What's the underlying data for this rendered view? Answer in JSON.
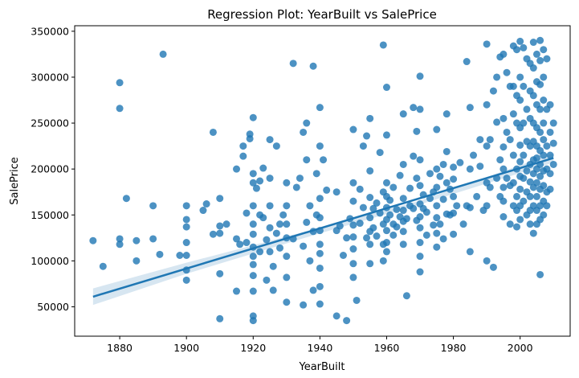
{
  "chart_data": {
    "type": "scatter",
    "title": "Regression Plot: YearBuilt vs SalePrice",
    "xlabel": "YearBuilt",
    "ylabel": "SalePrice",
    "xlim": [
      1866.5,
      2015
    ],
    "ylim": [
      18000,
      356000
    ],
    "x_ticks": [
      1880,
      1900,
      1920,
      1940,
      1960,
      1980,
      2000
    ],
    "y_ticks": [
      50000,
      100000,
      150000,
      200000,
      250000,
      300000,
      350000
    ],
    "grid": false,
    "colors": {
      "points": "#1f77b4",
      "line": "#1f77b4",
      "band": "#1f77b4"
    },
    "regression": {
      "x": [
        1872,
        2010
      ],
      "y": [
        61000,
        212000
      ]
    },
    "confidence_band": {
      "x": [
        1872,
        1900,
        1940,
        1970,
        2010
      ],
      "lower": [
        52000,
        86000,
        130000,
        161500,
        207000
      ],
      "upper": [
        70000,
        98000,
        136000,
        165500,
        217000
      ]
    },
    "points": [
      [
        1872,
        122000
      ],
      [
        1875,
        94000
      ],
      [
        1880,
        294000
      ],
      [
        1880,
        266000
      ],
      [
        1880,
        124000
      ],
      [
        1880,
        118000
      ],
      [
        1882,
        168000
      ],
      [
        1885,
        100000
      ],
      [
        1885,
        122000
      ],
      [
        1890,
        124000
      ],
      [
        1890,
        160000
      ],
      [
        1892,
        107000
      ],
      [
        1893,
        325000
      ],
      [
        1898,
        106000
      ],
      [
        1900,
        160000
      ],
      [
        1900,
        145000
      ],
      [
        1900,
        137000
      ],
      [
        1900,
        120000
      ],
      [
        1900,
        106000
      ],
      [
        1900,
        90000
      ],
      [
        1900,
        79000
      ],
      [
        1905,
        155000
      ],
      [
        1906,
        162000
      ],
      [
        1908,
        129000
      ],
      [
        1908,
        240000
      ],
      [
        1910,
        168000
      ],
      [
        1910,
        138000
      ],
      [
        1910,
        130000
      ],
      [
        1910,
        86000
      ],
      [
        1910,
        37000
      ],
      [
        1912,
        140000
      ],
      [
        1915,
        124000
      ],
      [
        1915,
        200000
      ],
      [
        1915,
        67000
      ],
      [
        1916,
        118000
      ],
      [
        1917,
        225000
      ],
      [
        1917,
        214000
      ],
      [
        1918,
        152000
      ],
      [
        1918,
        120000
      ],
      [
        1919,
        233000
      ],
      [
        1919,
        238000
      ],
      [
        1920,
        256000
      ],
      [
        1920,
        185000
      ],
      [
        1920,
        195000
      ],
      [
        1920,
        160000
      ],
      [
        1920,
        140000
      ],
      [
        1920,
        129000
      ],
      [
        1920,
        115000
      ],
      [
        1920,
        105000
      ],
      [
        1920,
        96000
      ],
      [
        1920,
        84000
      ],
      [
        1920,
        67000
      ],
      [
        1920,
        40000
      ],
      [
        1920,
        35000
      ],
      [
        1921,
        179000
      ],
      [
        1922,
        187000
      ],
      [
        1922,
        150000
      ],
      [
        1922,
        110000
      ],
      [
        1923,
        201000
      ],
      [
        1923,
        147000
      ],
      [
        1924,
        123000
      ],
      [
        1924,
        79000
      ],
      [
        1925,
        232000
      ],
      [
        1925,
        190000
      ],
      [
        1925,
        160000
      ],
      [
        1925,
        136000
      ],
      [
        1925,
        110000
      ],
      [
        1926,
        94000
      ],
      [
        1926,
        68000
      ],
      [
        1927,
        225000
      ],
      [
        1927,
        130000
      ],
      [
        1928,
        114000
      ],
      [
        1928,
        140000
      ],
      [
        1929,
        150000
      ],
      [
        1930,
        185000
      ],
      [
        1930,
        160000
      ],
      [
        1930,
        140000
      ],
      [
        1930,
        125000
      ],
      [
        1930,
        105000
      ],
      [
        1930,
        82000
      ],
      [
        1930,
        55000
      ],
      [
        1932,
        315000
      ],
      [
        1932,
        124000
      ],
      [
        1933,
        180000
      ],
      [
        1934,
        190000
      ],
      [
        1935,
        240000
      ],
      [
        1935,
        116000
      ],
      [
        1935,
        52000
      ],
      [
        1936,
        250000
      ],
      [
        1936,
        210000
      ],
      [
        1936,
        142000
      ],
      [
        1937,
        160000
      ],
      [
        1937,
        100000
      ],
      [
        1938,
        312000
      ],
      [
        1938,
        132000
      ],
      [
        1938,
        68000
      ],
      [
        1939,
        195000
      ],
      [
        1939,
        150000
      ],
      [
        1940,
        267000
      ],
      [
        1940,
        225000
      ],
      [
        1940,
        168000
      ],
      [
        1940,
        147000
      ],
      [
        1940,
        133000
      ],
      [
        1940,
        118000
      ],
      [
        1940,
        108000
      ],
      [
        1940,
        92000
      ],
      [
        1940,
        72000
      ],
      [
        1940,
        53000
      ],
      [
        1941,
        210000
      ],
      [
        1942,
        177000
      ],
      [
        1945,
        175000
      ],
      [
        1945,
        133000
      ],
      [
        1945,
        40000
      ],
      [
        1946,
        138000
      ],
      [
        1947,
        106000
      ],
      [
        1948,
        125000
      ],
      [
        1948,
        35000
      ],
      [
        1949,
        146000
      ],
      [
        1950,
        243000
      ],
      [
        1950,
        185000
      ],
      [
        1950,
        165000
      ],
      [
        1950,
        139000
      ],
      [
        1950,
        126000
      ],
      [
        1950,
        113000
      ],
      [
        1950,
        97000
      ],
      [
        1950,
        82000
      ],
      [
        1951,
        57000
      ],
      [
        1952,
        178000
      ],
      [
        1952,
        141000
      ],
      [
        1953,
        225000
      ],
      [
        1953,
        158000
      ],
      [
        1954,
        236000
      ],
      [
        1954,
        125000
      ],
      [
        1955,
        255000
      ],
      [
        1955,
        198000
      ],
      [
        1955,
        169000
      ],
      [
        1955,
        147000
      ],
      [
        1955,
        132000
      ],
      [
        1955,
        118000
      ],
      [
        1955,
        97000
      ],
      [
        1956,
        157000
      ],
      [
        1956,
        136000
      ],
      [
        1957,
        127000
      ],
      [
        1957,
        163000
      ],
      [
        1958,
        218000
      ],
      [
        1958,
        152000
      ],
      [
        1959,
        335000
      ],
      [
        1959,
        175000
      ],
      [
        1959,
        140000
      ],
      [
        1959,
        118000
      ],
      [
        1959,
        100000
      ],
      [
        1960,
        289000
      ],
      [
        1960,
        237000
      ],
      [
        1960,
        185000
      ],
      [
        1960,
        170000
      ],
      [
        1960,
        158000
      ],
      [
        1960,
        145000
      ],
      [
        1960,
        133000
      ],
      [
        1960,
        120000
      ],
      [
        1960,
        110000
      ],
      [
        1961,
        166000
      ],
      [
        1961,
        150000
      ],
      [
        1962,
        180000
      ],
      [
        1962,
        140000
      ],
      [
        1962,
        128000
      ],
      [
        1963,
        156000
      ],
      [
        1963,
        137000
      ],
      [
        1964,
        193000
      ],
      [
        1964,
        148000
      ],
      [
        1965,
        260000
      ],
      [
        1965,
        205000
      ],
      [
        1965,
        168000
      ],
      [
        1965,
        155000
      ],
      [
        1965,
        143000
      ],
      [
        1965,
        132000
      ],
      [
        1965,
        118000
      ],
      [
        1966,
        146000
      ],
      [
        1966,
        62000
      ],
      [
        1967,
        179000
      ],
      [
        1967,
        160000
      ],
      [
        1968,
        267000
      ],
      [
        1968,
        214000
      ],
      [
        1968,
        157000
      ],
      [
        1969,
        241000
      ],
      [
        1969,
        190000
      ],
      [
        1969,
        144000
      ],
      [
        1970,
        301000
      ],
      [
        1970,
        265000
      ],
      [
        1970,
        210000
      ],
      [
        1970,
        182000
      ],
      [
        1970,
        162000
      ],
      [
        1970,
        148000
      ],
      [
        1970,
        136000
      ],
      [
        1970,
        120000
      ],
      [
        1970,
        105000
      ],
      [
        1970,
        88000
      ],
      [
        1971,
        172000
      ],
      [
        1971,
        157000
      ],
      [
        1972,
        153000
      ],
      [
        1972,
        128000
      ],
      [
        1973,
        195000
      ],
      [
        1973,
        168000
      ],
      [
        1974,
        175000
      ],
      [
        1974,
        139000
      ],
      [
        1975,
        243000
      ],
      [
        1975,
        200000
      ],
      [
        1975,
        180000
      ],
      [
        1975,
        160000
      ],
      [
        1975,
        147000
      ],
      [
        1975,
        130000
      ],
      [
        1975,
        115000
      ],
      [
        1976,
        192000
      ],
      [
        1976,
        140000
      ],
      [
        1977,
        205000
      ],
      [
        1977,
        167000
      ],
      [
        1977,
        124000
      ],
      [
        1978,
        260000
      ],
      [
        1978,
        219000
      ],
      [
        1978,
        185000
      ],
      [
        1978,
        151000
      ],
      [
        1979,
        178000
      ],
      [
        1979,
        150000
      ],
      [
        1980,
        202000
      ],
      [
        1980,
        189000
      ],
      [
        1980,
        170000
      ],
      [
        1980,
        152000
      ],
      [
        1980,
        129000
      ],
      [
        1981,
        160000
      ],
      [
        1982,
        207000
      ],
      [
        1983,
        140000
      ],
      [
        1984,
        317000
      ],
      [
        1984,
        160000
      ],
      [
        1985,
        267000
      ],
      [
        1985,
        200000
      ],
      [
        1985,
        158000
      ],
      [
        1985,
        110000
      ],
      [
        1986,
        215000
      ],
      [
        1987,
        170000
      ],
      [
        1988,
        232000
      ],
      [
        1988,
        203000
      ],
      [
        1989,
        155000
      ],
      [
        1990,
        336000
      ],
      [
        1990,
        270000
      ],
      [
        1990,
        225000
      ],
      [
        1990,
        185000
      ],
      [
        1990,
        160000
      ],
      [
        1990,
        100000
      ],
      [
        1991,
        232000
      ],
      [
        1991,
        180000
      ],
      [
        1992,
        285000
      ],
      [
        1992,
        93000
      ],
      [
        1993,
        251000
      ],
      [
        1993,
        190000
      ],
      [
        1993,
        300000
      ],
      [
        1994,
        322000
      ],
      [
        1994,
        210000
      ],
      [
        1994,
        170000
      ],
      [
        1995,
        325000
      ],
      [
        1995,
        255000
      ],
      [
        1995,
        224000
      ],
      [
        1995,
        200000
      ],
      [
        1995,
        180000
      ],
      [
        1995,
        165000
      ],
      [
        1995,
        148000
      ],
      [
        1996,
        305000
      ],
      [
        1996,
        240000
      ],
      [
        1996,
        190000
      ],
      [
        1997,
        290000
      ],
      [
        1997,
        232000
      ],
      [
        1997,
        182000
      ],
      [
        1997,
        140000
      ],
      [
        1998,
        334000
      ],
      [
        1998,
        290000
      ],
      [
        1998,
        260000
      ],
      [
        1998,
        215000
      ],
      [
        1998,
        185000
      ],
      [
        1998,
        160000
      ],
      [
        1999,
        330000
      ],
      [
        1999,
        280000
      ],
      [
        1999,
        250000
      ],
      [
        1999,
        200000
      ],
      [
        1999,
        170000
      ],
      [
        1999,
        155000
      ],
      [
        1999,
        137000
      ],
      [
        2000,
        339000
      ],
      [
        2000,
        300000
      ],
      [
        2000,
        275000
      ],
      [
        2000,
        245000
      ],
      [
        2000,
        226000
      ],
      [
        2000,
        208000
      ],
      [
        2000,
        192000
      ],
      [
        2000,
        178000
      ],
      [
        2000,
        160000
      ],
      [
        2000,
        145000
      ],
      [
        2001,
        332000
      ],
      [
        2001,
        290000
      ],
      [
        2001,
        250000
      ],
      [
        2001,
        215000
      ],
      [
        2001,
        190000
      ],
      [
        2001,
        165000
      ],
      [
        2002,
        320000
      ],
      [
        2002,
        265000
      ],
      [
        2002,
        230000
      ],
      [
        2002,
        198000
      ],
      [
        2002,
        175000
      ],
      [
        2002,
        150000
      ],
      [
        2003,
        315000
      ],
      [
        2003,
        285000
      ],
      [
        2003,
        255000
      ],
      [
        2003,
        225000
      ],
      [
        2003,
        205000
      ],
      [
        2003,
        186000
      ],
      [
        2003,
        170000
      ],
      [
        2003,
        155000
      ],
      [
        2003,
        140000
      ],
      [
        2004,
        338000
      ],
      [
        2004,
        310000
      ],
      [
        2004,
        280000
      ],
      [
        2004,
        250000
      ],
      [
        2004,
        230000
      ],
      [
        2004,
        210000
      ],
      [
        2004,
        195000
      ],
      [
        2004,
        180000
      ],
      [
        2004,
        160000
      ],
      [
        2004,
        130000
      ],
      [
        2005,
        325000
      ],
      [
        2005,
        295000
      ],
      [
        2005,
        270000
      ],
      [
        2005,
        245000
      ],
      [
        2005,
        225000
      ],
      [
        2005,
        212000
      ],
      [
        2005,
        200000
      ],
      [
        2005,
        185000
      ],
      [
        2005,
        170000
      ],
      [
        2005,
        155000
      ],
      [
        2005,
        140000
      ],
      [
        2006,
        340000
      ],
      [
        2006,
        318000
      ],
      [
        2006,
        292000
      ],
      [
        2006,
        265000
      ],
      [
        2006,
        240000
      ],
      [
        2006,
        220000
      ],
      [
        2006,
        205000
      ],
      [
        2006,
        192000
      ],
      [
        2006,
        178000
      ],
      [
        2006,
        160000
      ],
      [
        2006,
        145000
      ],
      [
        2006,
        85000
      ],
      [
        2007,
        330000
      ],
      [
        2007,
        300000
      ],
      [
        2007,
        275000
      ],
      [
        2007,
        250000
      ],
      [
        2007,
        232000
      ],
      [
        2007,
        215000
      ],
      [
        2007,
        198000
      ],
      [
        2007,
        182000
      ],
      [
        2007,
        165000
      ],
      [
        2007,
        150000
      ],
      [
        2008,
        320000
      ],
      [
        2008,
        265000
      ],
      [
        2008,
        225000
      ],
      [
        2008,
        200000
      ],
      [
        2008,
        175000
      ],
      [
        2008,
        160000
      ],
      [
        2009,
        270000
      ],
      [
        2009,
        240000
      ],
      [
        2009,
        215000
      ],
      [
        2009,
        195000
      ],
      [
        2009,
        178000
      ],
      [
        2010,
        250000
      ],
      [
        2010,
        228000
      ],
      [
        2010,
        205000
      ]
    ]
  }
}
